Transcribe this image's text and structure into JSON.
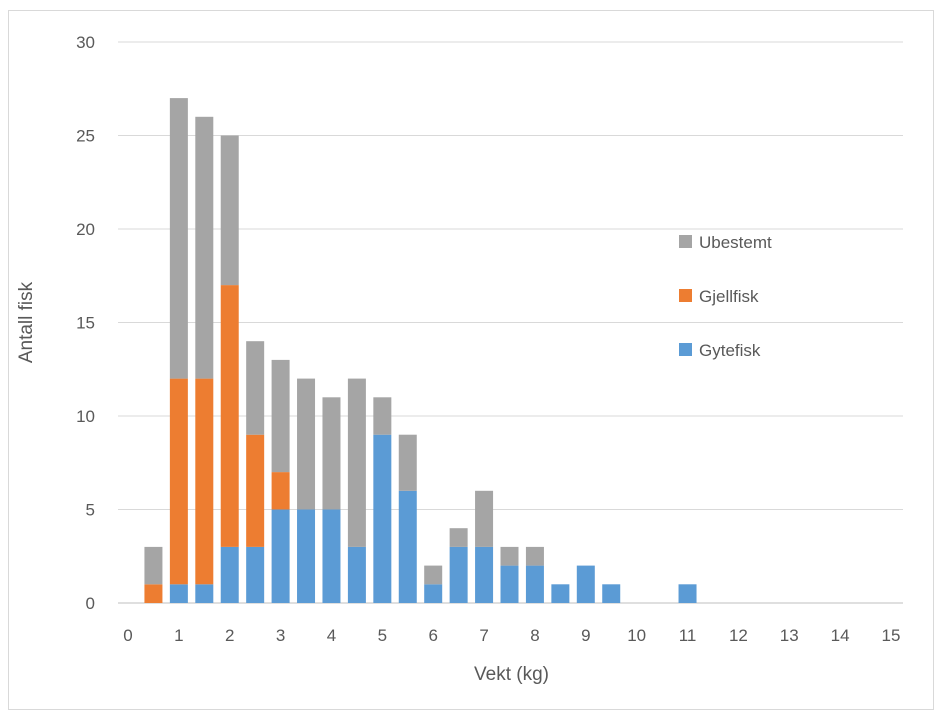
{
  "chart_data": {
    "type": "bar",
    "stacked": true,
    "xlabel": "Vekt (kg)",
    "ylabel": "Antall fisk",
    "ylim": [
      0,
      30
    ],
    "yticks": [
      0,
      5,
      10,
      15,
      20,
      25,
      30
    ],
    "xlim": [
      0,
      15
    ],
    "xticks": [
      "0",
      "1",
      "2",
      "3",
      "4",
      "5",
      "6",
      "7",
      "8",
      "9",
      "10",
      "11",
      "12",
      "13",
      "14",
      "15"
    ],
    "grid": true,
    "legend_position": "right",
    "x": [
      0.5,
      1,
      1.5,
      2,
      2.5,
      3,
      3.5,
      4,
      4.5,
      5,
      5.5,
      6,
      6.5,
      7,
      7.5,
      8,
      8.5,
      9,
      9.5,
      11
    ],
    "series": [
      {
        "name": "Gytefisk",
        "color": "#5b9bd5",
        "values": [
          0,
          1,
          1,
          3,
          3,
          5,
          5,
          5,
          3,
          9,
          6,
          1,
          3,
          3,
          2,
          2,
          1,
          2,
          1,
          1
        ]
      },
      {
        "name": "Gjellfisk",
        "color": "#ed7d31",
        "values": [
          1,
          11,
          11,
          14,
          6,
          2,
          0,
          0,
          0,
          0,
          0,
          0,
          0,
          0,
          0,
          0,
          0,
          0,
          0,
          0
        ]
      },
      {
        "name": "Ubestemt",
        "color": "#a5a5a5",
        "values": [
          2,
          15,
          14,
          8,
          5,
          6,
          7,
          6,
          9,
          2,
          3,
          1,
          1,
          3,
          1,
          1,
          0,
          0,
          0,
          0
        ]
      }
    ],
    "legend_order": [
      "Ubestemt",
      "Gjellfisk",
      "Gytefisk"
    ]
  }
}
